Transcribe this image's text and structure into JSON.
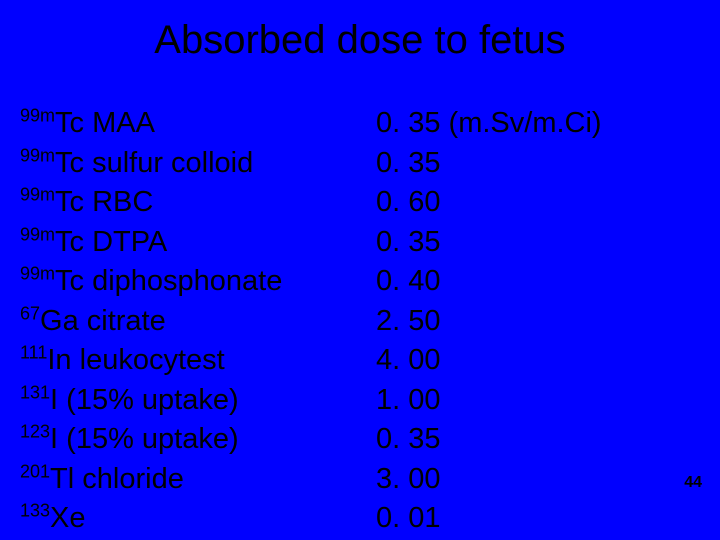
{
  "slide": {
    "title": "Absorbed dose to fetus",
    "page_number": "44",
    "background_color": "#0000ff",
    "text_color": "#000000",
    "title_fontsize": 40,
    "body_fontsize": 29,
    "sup_fontsize": 18,
    "page_fontsize": 16,
    "unit_suffix": " (m.Sv/m.Ci)",
    "rows": [
      {
        "sup": "99m",
        "el": "Tc",
        "name": " MAA",
        "value": "0. 35",
        "show_unit": true
      },
      {
        "sup": "99m",
        "el": "Tc",
        "name": " sulfur colloid",
        "value": "0. 35",
        "show_unit": false
      },
      {
        "sup": "99m",
        "el": "Tc",
        "name": " RBC",
        "value": "0. 60",
        "show_unit": false
      },
      {
        "sup": "99m",
        "el": "Tc",
        "name": " DTPA",
        "value": "0. 35",
        "show_unit": false
      },
      {
        "sup": "99m",
        "el": "Tc",
        "name": " diphosphonate",
        "value": "0. 40",
        "show_unit": false
      },
      {
        "sup": "67",
        "el": "Ga",
        "name": " citrate",
        "value": "2. 50",
        "show_unit": false
      },
      {
        "sup": "111",
        "el": "In",
        "name": " leukocytest",
        "value": "4. 00",
        "show_unit": false
      },
      {
        "sup": "131",
        "el": "I",
        "name": " (15% uptake)",
        "value": "1. 00",
        "show_unit": false
      },
      {
        "sup": "123",
        "el": "I",
        "name": " (15% uptake)",
        "value": "0. 35",
        "show_unit": false
      },
      {
        "sup": "201",
        "el": "Tl",
        "name": " chloride",
        "value": "3. 00",
        "show_unit": false
      },
      {
        "sup": "133",
        "el": "Xe",
        "name": "",
        "value": "0. 01",
        "show_unit": false
      }
    ]
  }
}
